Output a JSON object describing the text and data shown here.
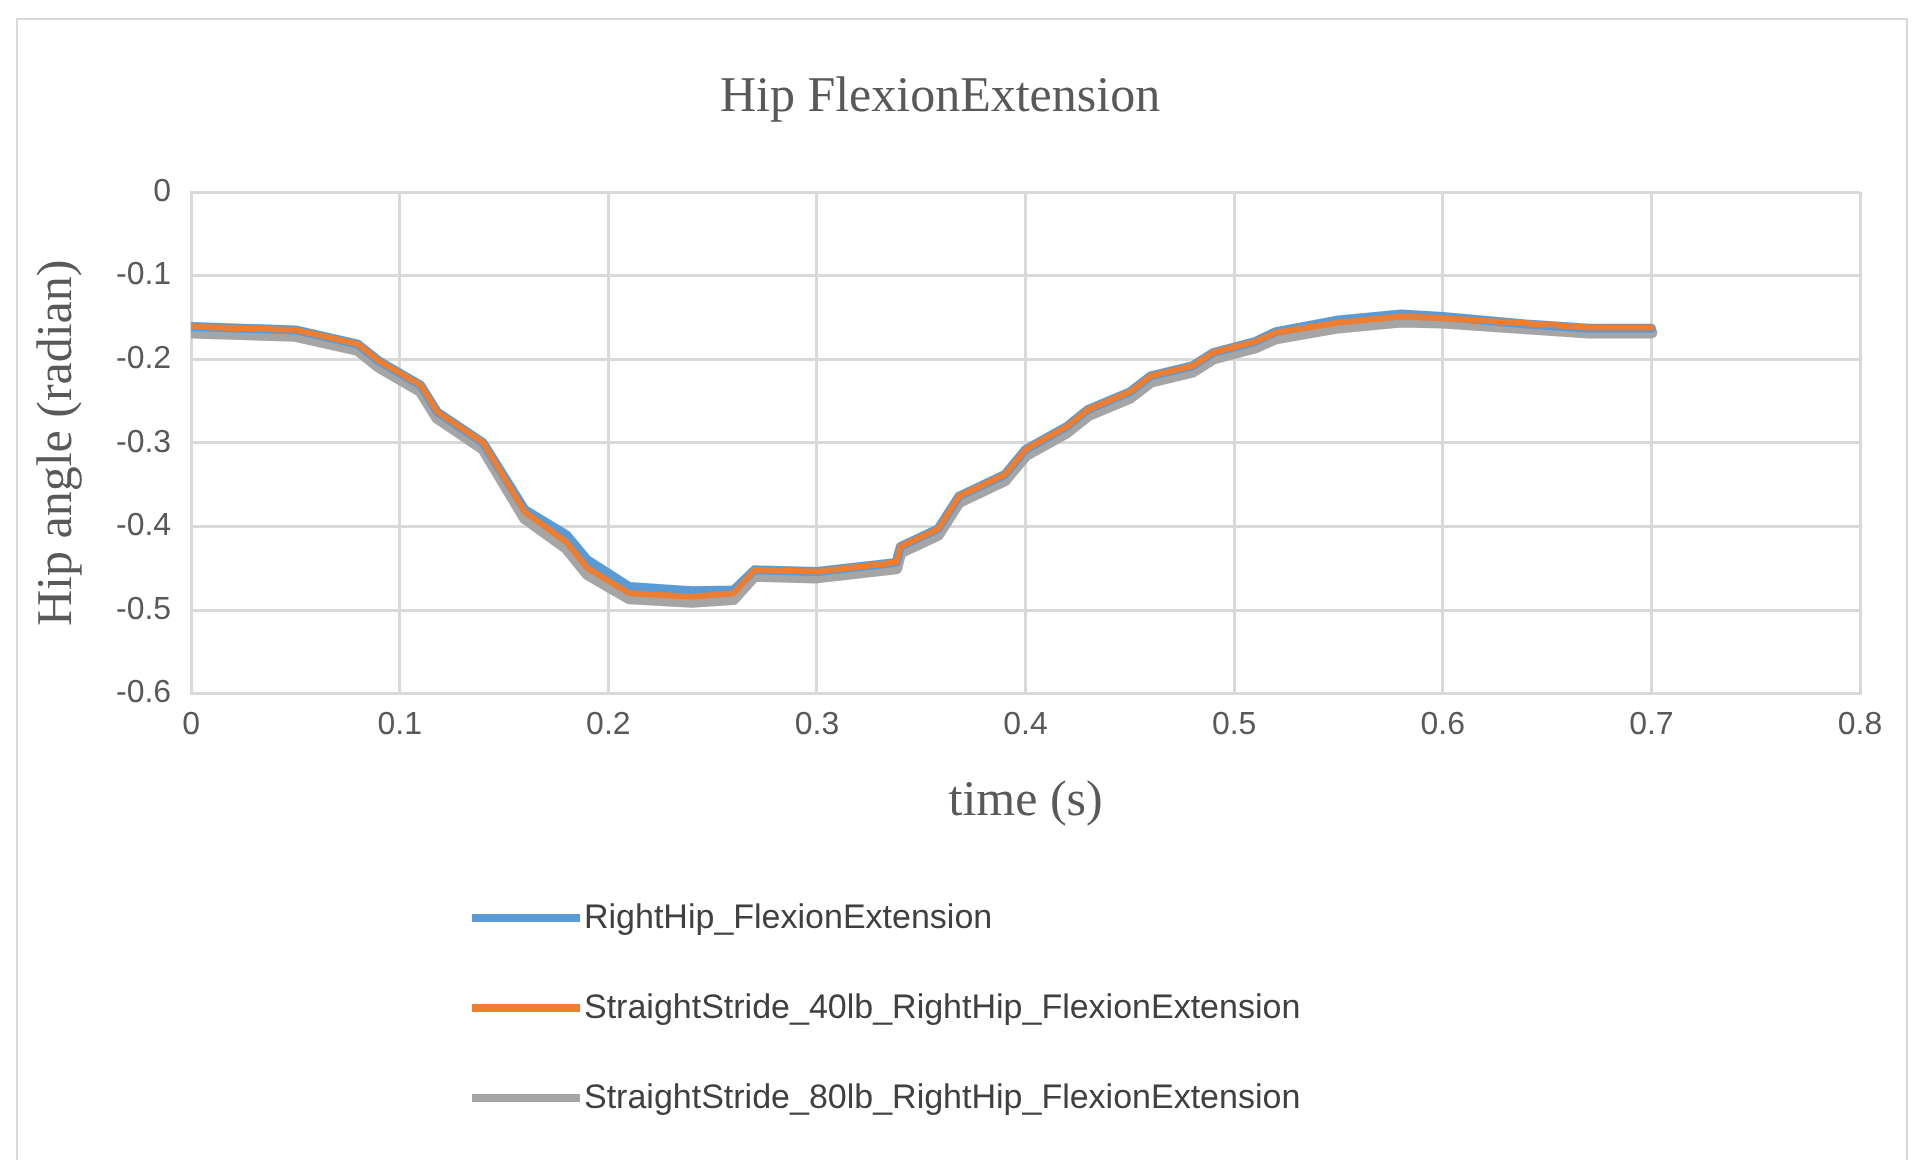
{
  "chart_data": {
    "type": "line",
    "title": "Hip FlexionExtension",
    "xlabel": "time (s)",
    "ylabel": "Hip angle (radian)",
    "x": [
      0,
      0.05,
      0.08,
      0.09,
      0.11,
      0.118,
      0.14,
      0.16,
      0.18,
      0.19,
      0.21,
      0.24,
      0.26,
      0.27,
      0.3,
      0.338,
      0.34,
      0.358,
      0.368,
      0.39,
      0.4,
      0.42,
      0.43,
      0.45,
      0.46,
      0.48,
      0.49,
      0.51,
      0.52,
      0.55,
      0.58,
      0.6,
      0.64,
      0.67,
      0.7
    ],
    "series": [
      {
        "name": "RightHip_FlexionExtension",
        "color": "#5b9bd5",
        "values": [
          -0.161,
          -0.165,
          -0.182,
          -0.202,
          -0.231,
          -0.263,
          -0.3,
          -0.38,
          -0.41,
          -0.44,
          -0.472,
          -0.477,
          -0.476,
          -0.452,
          -0.454,
          -0.443,
          -0.424,
          -0.403,
          -0.364,
          -0.338,
          -0.308,
          -0.28,
          -0.26,
          -0.239,
          -0.22,
          -0.208,
          -0.192,
          -0.179,
          -0.167,
          -0.153,
          -0.146,
          -0.149,
          -0.158,
          -0.163,
          -0.163
        ]
      },
      {
        "name": "StraightStride_40lb_RightHip_FlexionExtension",
        "color": "#ed7d31",
        "values": [
          -0.161,
          -0.165,
          -0.182,
          -0.202,
          -0.231,
          -0.263,
          -0.3,
          -0.383,
          -0.419,
          -0.45,
          -0.48,
          -0.484,
          -0.48,
          -0.452,
          -0.454,
          -0.443,
          -0.424,
          -0.403,
          -0.364,
          -0.338,
          -0.308,
          -0.28,
          -0.26,
          -0.239,
          -0.22,
          -0.208,
          -0.192,
          -0.179,
          -0.168,
          -0.156,
          -0.149,
          -0.151,
          -0.157,
          -0.162,
          -0.162
        ]
      },
      {
        "name": "StraightStride_80lb_RightHip_FlexionExtension",
        "color": "#a5a5a5",
        "values": [
          -0.168,
          -0.172,
          -0.189,
          -0.209,
          -0.238,
          -0.27,
          -0.307,
          -0.39,
          -0.426,
          -0.457,
          -0.486,
          -0.49,
          -0.487,
          -0.459,
          -0.461,
          -0.45,
          -0.431,
          -0.41,
          -0.371,
          -0.345,
          -0.315,
          -0.287,
          -0.267,
          -0.246,
          -0.227,
          -0.215,
          -0.199,
          -0.186,
          -0.175,
          -0.162,
          -0.155,
          -0.156,
          -0.163,
          -0.168,
          -0.168
        ]
      }
    ],
    "xlim": [
      0,
      0.8
    ],
    "xticks": [
      0,
      0.1,
      0.2,
      0.3,
      0.4,
      0.5,
      0.6,
      0.7,
      0.8
    ],
    "ylim": [
      -0.6,
      0
    ],
    "yticks": [
      -0.6,
      -0.5,
      -0.4,
      -0.3,
      -0.2,
      -0.1,
      0
    ],
    "grid": true,
    "legend": "bottom",
    "marker": "none",
    "line_style": "solid"
  }
}
